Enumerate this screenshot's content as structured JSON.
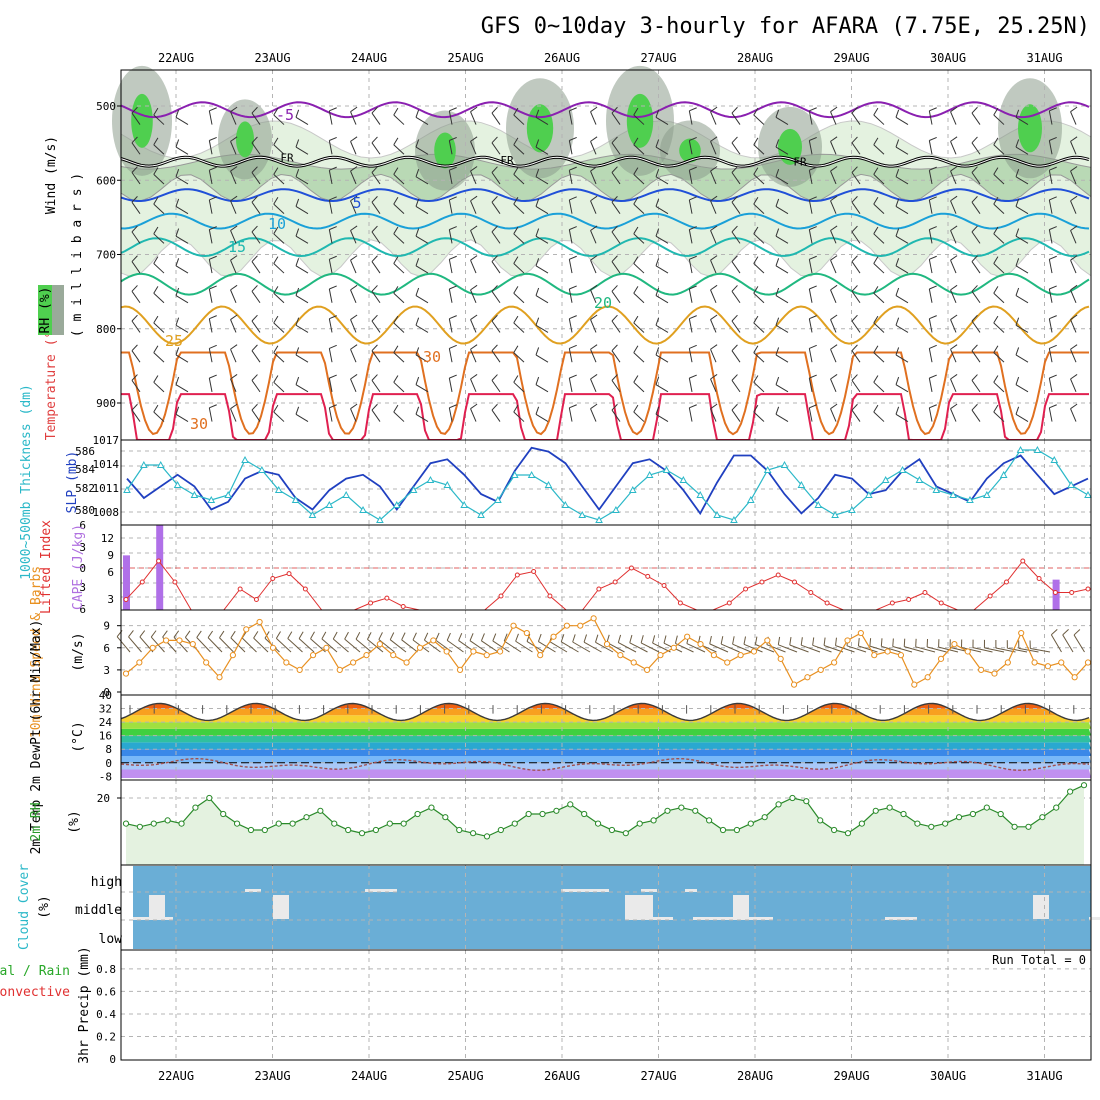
{
  "title": "GFS 0~10day 3-hourly for AFARA (7.75E, 25.25N)",
  "dates": [
    "22AUG",
    "23AUG",
    "24AUG",
    "25AUG",
    "26AUG",
    "27AUG",
    "28AUG",
    "29AUG",
    "30AUG",
    "31AUG"
  ],
  "colors": {
    "rh_green_light": "#e4f2e0",
    "rh_green_mid": "#b9d9b5",
    "rh_gray": "#8c9c8c",
    "rh_green_bright": "#4fcf4f",
    "cloud_blue": "#6aaed6",
    "cloud_white": "#eaeaea"
  },
  "panels": {
    "upper": {
      "ylabel_wind": "Wind (m/s)",
      "ylabel_temp": "Temperature (°C)",
      "ylabel_rh": "RH (%)",
      "ylabel_mb": "( m i l l i b a r s )",
      "yticks": [
        "500",
        "600",
        "700",
        "800",
        "900"
      ],
      "freezing_label": "FR",
      "rh_labels": [
        "30",
        "50",
        "70"
      ]
    },
    "slp": {
      "ylabel_thick": "1000~500mb Thickness (dm)",
      "ylabel_slp": "SLP (mb)",
      "left_ticks": [
        "586",
        "584",
        "582",
        "580"
      ],
      "right_ticks": [
        "1017",
        "1014",
        "1011",
        "1008"
      ]
    },
    "cape": {
      "ylabel_li": "Lifted Index",
      "ylabel_cape": "CAPE (J/kg)",
      "left_ticks": [
        "6",
        "3",
        "0",
        "3",
        "6"
      ],
      "right_ticks": [
        "12",
        "9",
        "6",
        "3"
      ]
    },
    "wind10": {
      "ylabel": "10m Wind Speed & Barbs",
      "unit": "(m/s)",
      "ticks": [
        "9",
        "6",
        "3",
        "0"
      ]
    },
    "temp2m": {
      "ylabel": "2m Temp 2m DewPt (6hr Min/Max)",
      "unit": "(°C)",
      "ticks": [
        "40",
        "32",
        "24",
        "16",
        "8",
        "0",
        "-8"
      ]
    },
    "rh2m": {
      "ylabel": "2m RH",
      "unit": "(%)",
      "ticks": [
        "20"
      ]
    },
    "cloud": {
      "ylabel": "Cloud Cover",
      "unit": "(%)",
      "levels": [
        "high",
        "middle",
        "low"
      ]
    },
    "precip": {
      "ylabel_total": "Total / Rain",
      "ylabel_conv": "Convective",
      "ylabel": "3hr Precip (mm)",
      "ticks": [
        "0.8",
        "0.6",
        "0.4",
        "0.2",
        "0"
      ],
      "run_total": "Run Total = 0"
    }
  },
  "chart_data": [
    {
      "type": "contour",
      "name": "upper-air temperature / RH / wind",
      "x": "time (3-hourly, 21 Aug 12Z to 31 Aug)",
      "y": "pressure (mb)",
      "ylim": [
        1000,
        450
      ],
      "yticks": [
        500,
        600,
        700,
        800,
        900
      ],
      "isotherm_labels": [
        -5,
        5,
        10,
        15,
        20,
        25,
        30
      ],
      "freezing_level_mb": 575,
      "isotherms": [
        {
          "t": -5,
          "base_mb": 505,
          "amp_mb": 10
        },
        {
          "t": 5,
          "base_mb": 620,
          "amp_mb": 8
        },
        {
          "t": 10,
          "base_mb": 655,
          "amp_mb": 10
        },
        {
          "t": 15,
          "base_mb": 690,
          "amp_mb": 12
        },
        {
          "t": 20,
          "base_mb": 740,
          "amp_mb": 14
        },
        {
          "t": 25,
          "base_mb": 795,
          "amp_mb": 25
        },
        {
          "t": 28,
          "base_mb": 865,
          "amp_mb": 55
        },
        {
          "t": 30,
          "base_mb": 930,
          "amp_mb": 70
        }
      ]
    },
    {
      "type": "line",
      "name": "thickness and SLP",
      "x_step_hours": 6,
      "series": [
        {
          "name": "SLP (mb)",
          "axis": "right",
          "ylim": [
            1006,
            1017
          ],
          "values": [
            1012,
            1009.5,
            1011,
            1012.5,
            1011,
            1008,
            1009,
            1012,
            1013,
            1012.5,
            1009.5,
            1008,
            1010.5,
            1012,
            1012.5,
            1011,
            1008,
            1011,
            1014,
            1014.5,
            1012.5,
            1010,
            1009,
            1013,
            1016,
            1015.5,
            1014,
            1011,
            1008,
            1011,
            1014,
            1014.5,
            1013,
            1010.5,
            1007.5,
            1011.5,
            1015,
            1015,
            1013,
            1010,
            1007.5,
            1009.5,
            1012.5,
            1012,
            1010,
            1010.5,
            1013,
            1014.5,
            1011,
            1010,
            1009,
            1012,
            1014,
            1015,
            1012.5,
            1010,
            1011,
            1012
          ]
        },
        {
          "name": "1000~500mb Thickness (dm)",
          "axis": "left",
          "ylim": [
            579,
            587.5
          ],
          "values": [
            582.5,
            585,
            585,
            583,
            582,
            581.5,
            582,
            585.5,
            584.5,
            582.5,
            581.5,
            580,
            581,
            582,
            580.5,
            579.5,
            581,
            582.5,
            583.5,
            583,
            581,
            580,
            581.5,
            584,
            584,
            583,
            581,
            580,
            579.5,
            580.5,
            582.5,
            584,
            584.5,
            583.5,
            582,
            580,
            579.5,
            581.5,
            584.5,
            585,
            583,
            581,
            580,
            580.5,
            582,
            583.5,
            584.5,
            583.5,
            582.5,
            582,
            581.5,
            582,
            584,
            586.5,
            586.5,
            585.5,
            583,
            582
          ]
        }
      ]
    },
    {
      "type": "line",
      "name": "Lifted Index and CAPE",
      "series": [
        {
          "name": "Lifted Index",
          "ylim": [
            6,
            -6
          ],
          "values": [
            4.5,
            2,
            -1,
            2,
            6,
            6.5,
            6.5,
            3,
            4.5,
            1.5,
            0.8,
            3,
            6,
            6.5,
            6.5,
            5,
            4.3,
            5.5,
            6.5,
            6.5,
            6.5,
            6.5,
            6.5,
            4,
            1,
            0.5,
            4,
            6.5,
            6,
            3,
            2,
            0,
            1.2,
            2.5,
            5,
            6.5,
            6.5,
            5,
            3,
            2,
            1,
            2,
            3.5,
            5,
            6.5,
            6.5,
            6,
            5,
            4.5,
            3.5,
            5,
            6.5,
            6.5,
            4,
            2,
            -1,
            1.5,
            3.5,
            3.5,
            3
          ]
        },
        {
          "name": "CAPE (J/kg)",
          "type": "bar",
          "ylim": [
            0,
            14
          ],
          "values": [
            {
              "x": 0,
              "v": 9
            },
            {
              "x": 2,
              "v": 14
            },
            {
              "x": 56,
              "v": 5
            }
          ]
        }
      ]
    },
    {
      "type": "line",
      "name": "10m wind speed",
      "ylim": [
        0,
        10
      ],
      "series": [
        {
          "name": "10m Wind Speed",
          "values": [
            2.5,
            4,
            6,
            7,
            7,
            6.5,
            4,
            2,
            5,
            8.5,
            9.5,
            6,
            4,
            3,
            5,
            6,
            3,
            4,
            5,
            6.5,
            5,
            4,
            6,
            7,
            5.5,
            3,
            5.5,
            5,
            5.5,
            9,
            8,
            5,
            7.5,
            9,
            9,
            10,
            6.5,
            5,
            4,
            3,
            5,
            6,
            7.5,
            6.5,
            5,
            4,
            5,
            5.5,
            7,
            4.5,
            1,
            2,
            3,
            4,
            7,
            8,
            5,
            5.5,
            5,
            1,
            2,
            4.5,
            6.5,
            5.5,
            3,
            2.5,
            4,
            8,
            4,
            3.5,
            4,
            2,
            4
          ]
        }
      ]
    },
    {
      "type": "area",
      "name": "2m temperature and dewpoint",
      "ylim": [
        -9,
        40
      ],
      "series": [
        {
          "name": "2m Temp",
          "values_cycle": [
            27,
            29,
            32,
            35,
            36,
            34,
            30,
            28
          ]
        },
        {
          "name": "2m DewPt",
          "values_cycle": [
            0,
            -1,
            -2,
            -3,
            -2,
            -1,
            0,
            1
          ]
        }
      ]
    },
    {
      "type": "line",
      "name": "2m RH",
      "ylim": [
        0,
        26
      ],
      "series": [
        {
          "name": "2m RH",
          "values": [
            12,
            11,
            12,
            13,
            12,
            17,
            20,
            15,
            12,
            10,
            10,
            12,
            12,
            14,
            16,
            12,
            10,
            9,
            10,
            12,
            12,
            15,
            17,
            14,
            10,
            9,
            8,
            10,
            12,
            15,
            15,
            16,
            18,
            15,
            12,
            10,
            9,
            12,
            13,
            16,
            17,
            16,
            13,
            10,
            10,
            12,
            14,
            18,
            20,
            19,
            13,
            10,
            9,
            12,
            16,
            17,
            15,
            12,
            11,
            12,
            14,
            15,
            17,
            15,
            11,
            11,
            14,
            17,
            22,
            24
          ]
        }
      ]
    },
    {
      "type": "bar",
      "name": "cloud cover",
      "series": [
        {
          "name": "high",
          "segments": [
            {
              "x": 28,
              "w": 4
            },
            {
              "x": 58,
              "w": 8
            },
            {
              "x": 107,
              "w": 12
            },
            {
              "x": 127,
              "w": 4
            },
            {
              "x": 138,
              "w": 3
            }
          ]
        },
        {
          "name": "middle",
          "segments": [
            {
              "x": 4,
              "w": 4
            },
            {
              "x": 35,
              "w": 4
            },
            {
              "x": 123,
              "w": 7
            },
            {
              "x": 150,
              "w": 4
            },
            {
              "x": 225,
              "w": 4
            }
          ]
        },
        {
          "name": "low",
          "segments": [
            {
              "x": 0,
              "w": 10
            },
            {
              "x": 123,
              "w": 12
            },
            {
              "x": 140,
              "w": 20
            },
            {
              "x": 188,
              "w": 8
            },
            {
              "x": 239,
              "w": 4
            }
          ]
        }
      ]
    },
    {
      "type": "bar",
      "name": "3hr precipitation",
      "ylim": [
        0,
        0.95
      ],
      "series": [
        {
          "name": "Total / Rain",
          "values": []
        },
        {
          "name": "Convective",
          "values": []
        }
      ]
    }
  ]
}
